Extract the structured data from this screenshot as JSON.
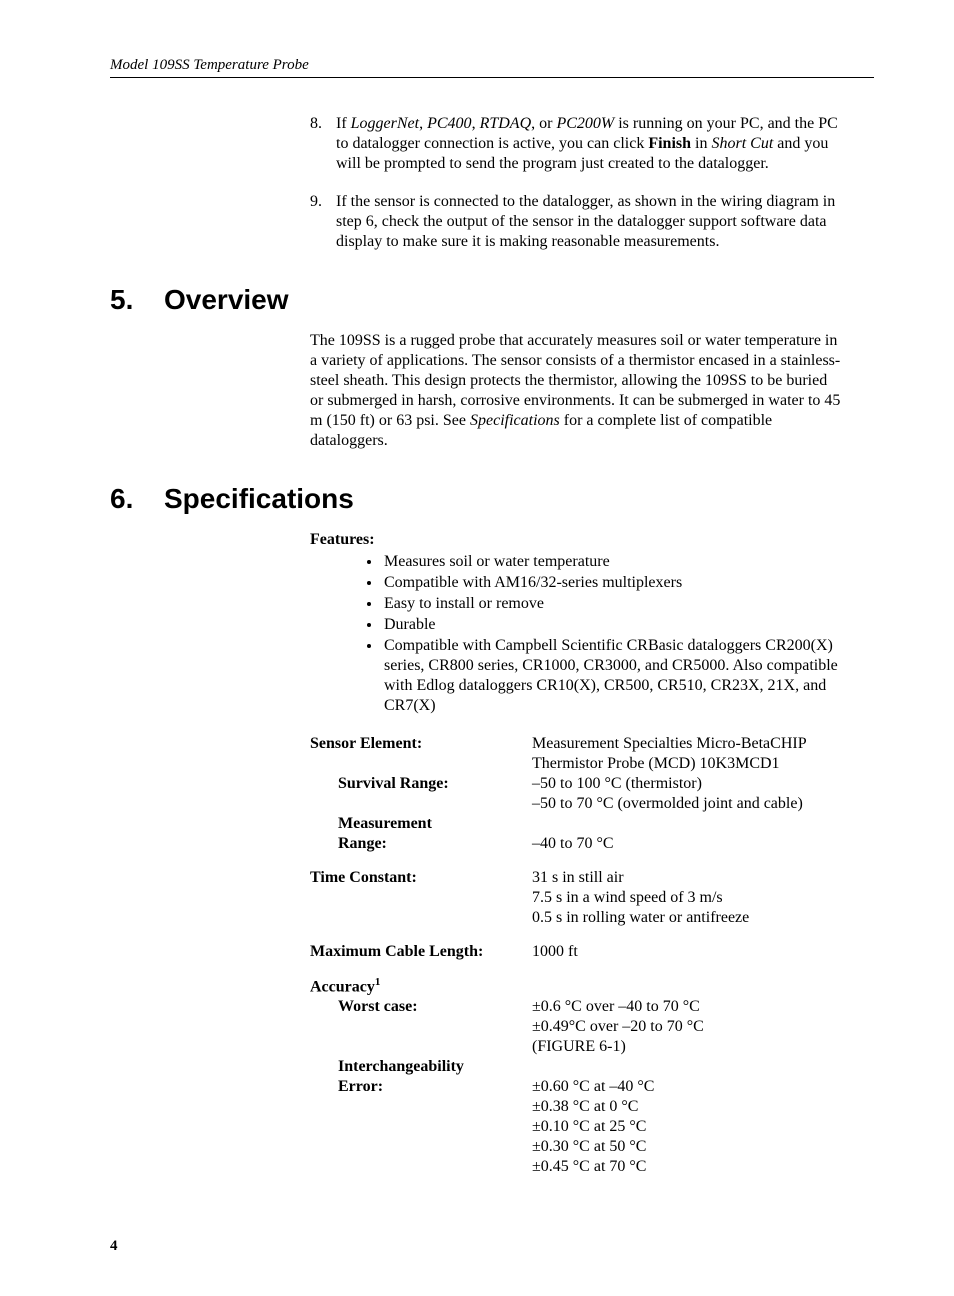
{
  "header": {
    "running_title": "Model 109SS Temperature Probe"
  },
  "steps": {
    "s8": {
      "num": "8.",
      "t1": "If ",
      "i1": "LoggerNet",
      "t2": ", ",
      "i2": "PC400",
      "t3": ", ",
      "i3": "RTDAQ",
      "t4": ", or ",
      "i4": "PC200W",
      "t5": " is running on your PC, and the PC to datalogger connection is active, you can click ",
      "b1": "Finish",
      "t6": " in ",
      "i5": "Short Cut",
      "t7": " and you will be prompted to send the program just created to the datalogger."
    },
    "s9": {
      "num": "9.",
      "text": "If the sensor is connected to the datalogger, as shown in the wiring diagram in step 6, check the output of the sensor in the datalogger support software data display to make sure it is making reasonable measurements."
    }
  },
  "sections": {
    "overview": {
      "num": "5.",
      "title": "Overview",
      "para_a": "The 109SS is a rugged probe that accurately measures soil or water temperature in a variety of applications.  The sensor consists of a thermistor encased in a stainless-steel sheath.  This design protects the thermistor, allowing the 109SS to be buried or submerged in harsh, corrosive environments.  It can be submerged in water to 45 m (150 ft) or 63 psi.  See ",
      "para_i": "Specifications",
      "para_b": " for a complete list of compatible dataloggers."
    },
    "specs": {
      "num": "6.",
      "title": "Specifications"
    }
  },
  "features": {
    "label": "Features:",
    "items": [
      "Measures soil or water temperature",
      "Compatible with AM16/32-series multiplexers",
      "Easy to install or remove",
      "Durable",
      "Compatible with Campbell Scientific CRBasic dataloggers CR200(X) series, CR800 series, CR1000, CR3000, and CR5000.  Also compatible with Edlog dataloggers CR10(X), CR500, CR510, CR23X, 21X, and CR7(X)"
    ]
  },
  "specs": {
    "sensor_element": {
      "label": "Sensor Element:",
      "value": "Measurement Specialties Micro-BetaCHIP Thermistor Probe (MCD) 10K3MCD1"
    },
    "survival_range": {
      "label": "Survival Range:",
      "v1": "–50 to 100 °C (thermistor)",
      "v2": "–50 to 70 °C (overmolded joint and cable)"
    },
    "measurement_range": {
      "label1": "Measurement",
      "label2": "Range:",
      "value": "–40 to 70 °C"
    },
    "time_constant": {
      "label": "Time Constant:",
      "v1": "31 s in still air",
      "v2": "7.5 s in a wind speed of 3 m/s",
      "v3": "0.5 s in rolling water or antifreeze"
    },
    "max_cable": {
      "label": "Maximum Cable Length:",
      "value": "1000 ft"
    },
    "accuracy": {
      "label": "Accuracy",
      "sup": "1"
    },
    "worst_case": {
      "label": "Worst case:",
      "v1": "±0.6 °C over –40 to 70 °C",
      "v2": "±0.49°C over –20 to 70 °C",
      "v3": "(FIGURE 6-1)"
    },
    "interch": {
      "label1": "Interchangeability",
      "label2": "Error:",
      "v1": "±0.60 °C at –40 °C",
      "v2": "±0.38 °C at 0 °C",
      "v3": "±0.10 °C at 25 °C",
      "v4": "±0.30 °C at 50 °C",
      "v5": "±0.45 °C at 70 °C"
    }
  },
  "page_number": "4"
}
